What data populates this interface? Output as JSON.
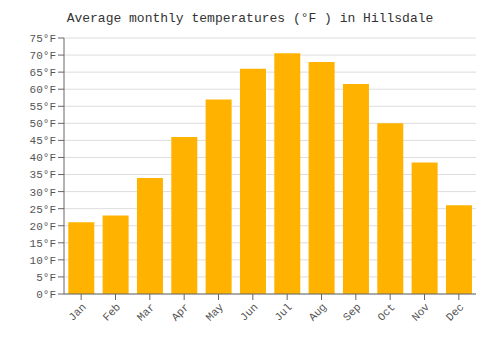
{
  "chart_data": {
    "type": "bar",
    "title": "Average monthly temperatures (°F ) in Hillsdale",
    "categories": [
      "Jan",
      "Feb",
      "Mar",
      "Apr",
      "May",
      "Jun",
      "Jul",
      "Aug",
      "Sep",
      "Oct",
      "Nov",
      "Dec"
    ],
    "values": [
      21,
      23,
      34,
      46,
      57,
      66,
      70.5,
      68,
      61.5,
      50,
      38.5,
      26
    ],
    "color": "#FFB300",
    "ylim": [
      0,
      75
    ],
    "yticks": [
      {
        "value": 0,
        "label": "0°F"
      },
      {
        "value": 5,
        "label": "5°F"
      },
      {
        "value": 10,
        "label": "10°F"
      },
      {
        "value": 15,
        "label": "15°F"
      },
      {
        "value": 20,
        "label": "20°F"
      },
      {
        "value": 25,
        "label": "25°F"
      },
      {
        "value": 30,
        "label": "30°F"
      },
      {
        "value": 35,
        "label": "35°F"
      },
      {
        "value": 40,
        "label": "40°F"
      },
      {
        "value": 45,
        "label": "45°F"
      },
      {
        "value": 50,
        "label": "50°F"
      },
      {
        "value": 55,
        "label": "55°F"
      },
      {
        "value": 60,
        "label": "60°F"
      },
      {
        "value": 65,
        "label": "65°F"
      },
      {
        "value": 70,
        "label": "70°F"
      },
      {
        "value": 75,
        "label": "75°F"
      }
    ],
    "grid": true
  }
}
